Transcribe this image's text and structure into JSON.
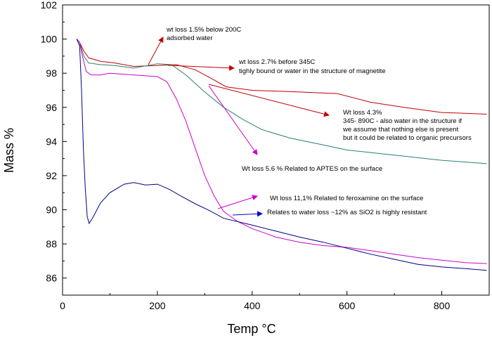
{
  "chart_data": {
    "type": "line",
    "title": "",
    "xlabel": "Temp °C",
    "ylabel": "Mass %",
    "xlim": [
      0,
      900
    ],
    "ylim": [
      85,
      102
    ],
    "grid": false,
    "x_ticks": [
      0,
      200,
      400,
      600,
      800
    ],
    "x_tick_labels": [
      "0",
      "200",
      "400",
      "600",
      "800"
    ],
    "y_ticks": [
      86,
      88,
      90,
      92,
      94,
      96,
      98,
      100,
      102
    ],
    "y_tick_labels": [
      "86",
      "88",
      "90",
      "92",
      "94",
      "96",
      "98",
      "100",
      "102"
    ],
    "series": [
      {
        "color": "#c00000",
        "points": [
          [
            30,
            100
          ],
          [
            36,
            99.8
          ],
          [
            45,
            99.3
          ],
          [
            55,
            98.9
          ],
          [
            80,
            98.7
          ],
          [
            110,
            98.6
          ],
          [
            150,
            98.4
          ],
          [
            200,
            98.45
          ],
          [
            240,
            98.5
          ],
          [
            280,
            98.2
          ],
          [
            320,
            97.6
          ],
          [
            345,
            97.2
          ],
          [
            400,
            97.0
          ],
          [
            500,
            96.9
          ],
          [
            580,
            96.8
          ],
          [
            650,
            96.3
          ],
          [
            720,
            96.0
          ],
          [
            800,
            95.7
          ],
          [
            850,
            95.65
          ],
          [
            895,
            95.6
          ]
        ]
      },
      {
        "color": "#2a7f6f",
        "points": [
          [
            30,
            100
          ],
          [
            36,
            99.8
          ],
          [
            45,
            99.0
          ],
          [
            55,
            98.6
          ],
          [
            80,
            98.5
          ],
          [
            110,
            98.45
          ],
          [
            150,
            98.3
          ],
          [
            200,
            98.55
          ],
          [
            230,
            98.5
          ],
          [
            260,
            97.9
          ],
          [
            300,
            96.9
          ],
          [
            340,
            96.0
          ],
          [
            380,
            95.3
          ],
          [
            420,
            94.7
          ],
          [
            480,
            94.2
          ],
          [
            550,
            93.8
          ],
          [
            600,
            93.5
          ],
          [
            700,
            93.2
          ],
          [
            800,
            92.9
          ],
          [
            895,
            92.7
          ]
        ]
      },
      {
        "color": "#cc00cc",
        "points": [
          [
            30,
            100
          ],
          [
            36,
            99.8
          ],
          [
            42,
            99.0
          ],
          [
            50,
            98.1
          ],
          [
            60,
            97.9
          ],
          [
            80,
            97.9
          ],
          [
            100,
            98.0
          ],
          [
            150,
            97.9
          ],
          [
            200,
            97.8
          ],
          [
            220,
            97.5
          ],
          [
            240,
            96.5
          ],
          [
            260,
            95.2
          ],
          [
            280,
            93.6
          ],
          [
            300,
            92.0
          ],
          [
            320,
            90.8
          ],
          [
            340,
            89.9
          ],
          [
            370,
            89.3
          ],
          [
            400,
            88.9
          ],
          [
            450,
            88.4
          ],
          [
            500,
            88.1
          ],
          [
            550,
            87.9
          ],
          [
            600,
            87.8
          ],
          [
            650,
            87.6
          ],
          [
            700,
            87.4
          ],
          [
            750,
            87.2
          ],
          [
            800,
            87.05
          ],
          [
            850,
            86.9
          ],
          [
            895,
            86.85
          ]
        ]
      },
      {
        "color": "#000080",
        "points": [
          [
            30,
            100
          ],
          [
            36,
            99.6
          ],
          [
            40,
            97.0
          ],
          [
            44,
            93.5
          ],
          [
            48,
            91.2
          ],
          [
            52,
            89.6
          ],
          [
            56,
            89.2
          ],
          [
            65,
            89.6
          ],
          [
            80,
            90.4
          ],
          [
            100,
            91.0
          ],
          [
            130,
            91.5
          ],
          [
            150,
            91.6
          ],
          [
            175,
            91.45
          ],
          [
            200,
            91.5
          ],
          [
            225,
            91.2
          ],
          [
            250,
            90.8
          ],
          [
            280,
            90.35
          ],
          [
            310,
            89.95
          ],
          [
            340,
            89.5
          ],
          [
            400,
            89.1
          ],
          [
            450,
            88.75
          ],
          [
            500,
            88.4
          ],
          [
            550,
            88.1
          ],
          [
            600,
            87.75
          ],
          [
            650,
            87.4
          ],
          [
            700,
            87.1
          ],
          [
            750,
            86.8
          ],
          [
            800,
            86.65
          ],
          [
            850,
            86.55
          ],
          [
            895,
            86.45
          ]
        ]
      }
    ],
    "annotations": [
      {
        "lines": [
          "wt loss 1.5% below 200C",
          "adsorbed water"
        ],
        "color": "#c00000"
      },
      {
        "lines": [
          "wt loss 2.7% before 345C",
          "tighly bound or water in the structure of magnetite"
        ],
        "color": "#c00000"
      },
      {
        "lines": [
          "Wt loss 4.3%",
          "345- 890C - also water in the structure if",
          "we assume that nothing else is present",
          "but it could be related to organic precursors"
        ],
        "color": "#c00000"
      },
      {
        "lines": [
          "Wt loss 5.6 % Related to APTES on the surface"
        ],
        "color": "#cc00cc"
      },
      {
        "lines": [
          "Wt loss 11,1% Related to feroxamine on the surface"
        ],
        "color": "#cc00cc"
      },
      {
        "lines": [
          "Relates to water loss ~12% as SiO2 is highly resistant"
        ],
        "color": "#0000cc"
      }
    ]
  }
}
